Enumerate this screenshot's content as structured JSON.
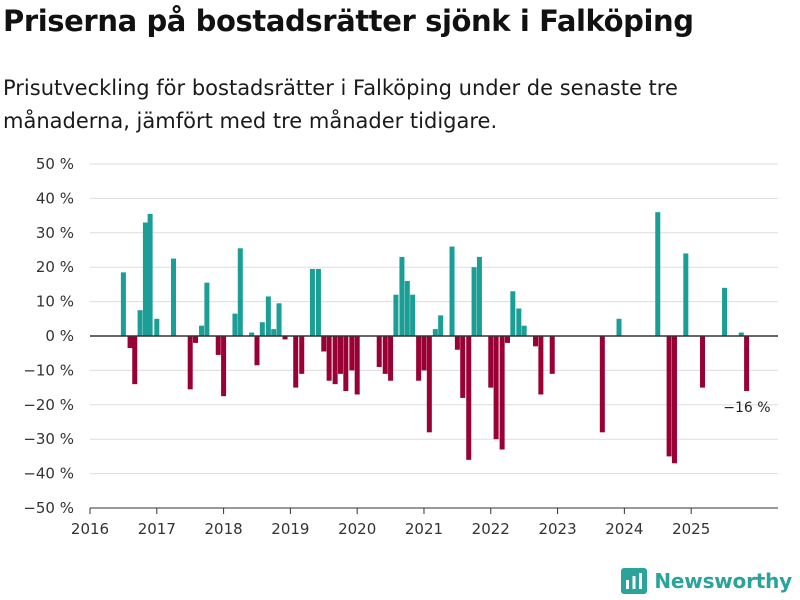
{
  "title": "Priserna på bostadsrätter sjönk i Falköping",
  "subtitle": "Prisutveckling för bostadsrätter i Falköping under de senaste tre månaderna, jämfört med tre månader tidigare.",
  "brand": "Newsworthy",
  "colors": {
    "positive": "#1a9e96",
    "negative": "#990033",
    "grid": "#dddddd",
    "axis": "#333333",
    "brand": "#2aa39a"
  },
  "chart_data": {
    "type": "bar",
    "ylim": [
      -50,
      50
    ],
    "y_ticks": [
      50,
      40,
      30,
      20,
      10,
      0,
      -10,
      -20,
      -30,
      -40,
      -50
    ],
    "y_tick_labels": [
      "50 %",
      "40 %",
      "30 %",
      "20 %",
      "10 %",
      "0 %",
      "−10 %",
      "−20 %",
      "−30 %",
      "−40 %",
      "−50 %"
    ],
    "x_range": [
      2016.0,
      2026.3
    ],
    "x_ticks": [
      2016,
      2017,
      2018,
      2019,
      2020,
      2021,
      2022,
      2023,
      2024,
      2025
    ],
    "x_tick_labels": [
      "2016",
      "2017",
      "2018",
      "2019",
      "2020",
      "2021",
      "2022",
      "2023",
      "2024",
      "2025"
    ],
    "x": [
      2016.5,
      2016.6,
      2016.67,
      2016.75,
      2016.83,
      2016.9,
      2017.0,
      2017.25,
      2017.5,
      2017.58,
      2017.67,
      2017.75,
      2017.92,
      2018.0,
      2018.17,
      2018.25,
      2018.42,
      2018.5,
      2018.58,
      2018.67,
      2018.75,
      2018.83,
      2018.92,
      2019.08,
      2019.17,
      2019.33,
      2019.42,
      2019.5,
      2019.58,
      2019.67,
      2019.75,
      2019.83,
      2019.92,
      2020.0,
      2020.33,
      2020.42,
      2020.5,
      2020.58,
      2020.67,
      2020.75,
      2020.83,
      2020.92,
      2021.0,
      2021.08,
      2021.17,
      2021.25,
      2021.42,
      2021.5,
      2021.58,
      2021.67,
      2021.75,
      2021.83,
      2022.0,
      2022.08,
      2022.17,
      2022.25,
      2022.33,
      2022.42,
      2022.5,
      2022.67,
      2022.75,
      2022.92,
      2023.67,
      2023.92,
      2024.5,
      2024.67,
      2024.75,
      2024.92,
      2025.17,
      2025.5,
      2025.75,
      2025.83
    ],
    "values": [
      18.5,
      -3.5,
      -14,
      7.5,
      33,
      35.5,
      5,
      22.5,
      -15.5,
      -2,
      3,
      15.5,
      -5.5,
      -17.5,
      6.5,
      25.5,
      1,
      -8.5,
      4,
      11.5,
      2,
      9.5,
      -1,
      -15,
      -11,
      19.5,
      19.5,
      -4.5,
      -13,
      -14,
      -11,
      -16,
      -10,
      -17,
      -9,
      -11,
      -13,
      12,
      23,
      16,
      12,
      -13,
      -10,
      -28,
      2,
      6,
      26,
      -4,
      -18,
      -36,
      20,
      23,
      -15,
      -30,
      -33,
      -2,
      13,
      8,
      3,
      -3,
      -17,
      -11,
      -28,
      5,
      36,
      -35,
      -37,
      24,
      -15,
      14,
      1,
      -16
    ],
    "annotations": [
      {
        "text": "−16 %",
        "x": 2025.83,
        "y": -16
      }
    ]
  }
}
